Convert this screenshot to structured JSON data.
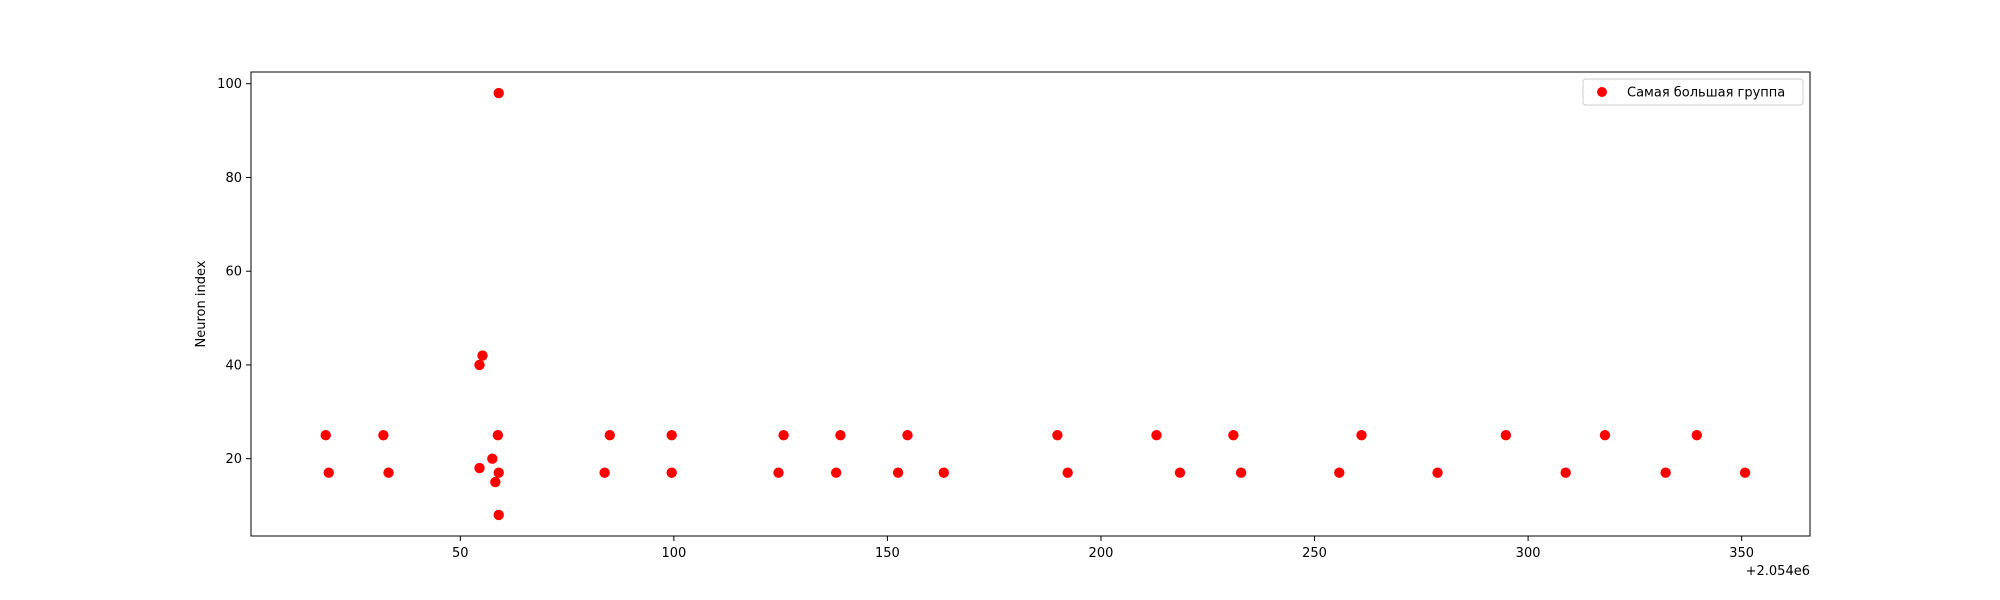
{
  "chart_data": {
    "type": "scatter",
    "title": "",
    "xlabel": "",
    "ylabel": "Neuron index",
    "x_offset_label": "+2.054e6",
    "x_offset": 2054000,
    "xlim": [
      2054001,
      2054366
    ],
    "ylim": [
      3.5,
      102.5
    ],
    "xticks": [
      2054050,
      2054100,
      2054150,
      2054200,
      2054250,
      2054300,
      2054350
    ],
    "xtick_labels": [
      "50",
      "100",
      "150",
      "200",
      "250",
      "300",
      "350"
    ],
    "yticks": [
      20,
      40,
      60,
      80,
      100
    ],
    "ytick_labels": [
      "20",
      "40",
      "60",
      "80",
      "100"
    ],
    "grid": false,
    "legend_position": "top-right",
    "series": [
      {
        "name": "Самая большая группа",
        "color": "#ff0000",
        "marker": "circle",
        "points": [
          [
            2054018.5,
            25
          ],
          [
            2054019.2,
            17
          ],
          [
            2054032.0,
            25
          ],
          [
            2054033.2,
            17
          ],
          [
            2054054.5,
            40
          ],
          [
            2054054.5,
            18
          ],
          [
            2054055.2,
            42
          ],
          [
            2054057.5,
            20
          ],
          [
            2054058.2,
            15
          ],
          [
            2054058.8,
            25
          ],
          [
            2054059.0,
            98
          ],
          [
            2054059.0,
            17
          ],
          [
            2054059.0,
            8
          ],
          [
            2054083.8,
            17
          ],
          [
            2054085.0,
            25
          ],
          [
            2054099.5,
            25
          ],
          [
            2054099.5,
            17
          ],
          [
            2054124.5,
            17
          ],
          [
            2054125.7,
            25
          ],
          [
            2054138.0,
            17
          ],
          [
            2054139.0,
            25
          ],
          [
            2054152.5,
            17
          ],
          [
            2054154.7,
            25
          ],
          [
            2054163.2,
            17
          ],
          [
            2054189.8,
            25
          ],
          [
            2054192.2,
            17
          ],
          [
            2054213.0,
            25
          ],
          [
            2054218.5,
            17
          ],
          [
            2054231.0,
            25
          ],
          [
            2054232.8,
            17
          ],
          [
            2054255.8,
            17
          ],
          [
            2054261.0,
            25
          ],
          [
            2054278.8,
            17
          ],
          [
            2054294.8,
            25
          ],
          [
            2054308.8,
            17
          ],
          [
            2054318.0,
            25
          ],
          [
            2054332.2,
            17
          ],
          [
            2054339.5,
            25
          ],
          [
            2054350.8,
            17
          ]
        ]
      }
    ]
  }
}
